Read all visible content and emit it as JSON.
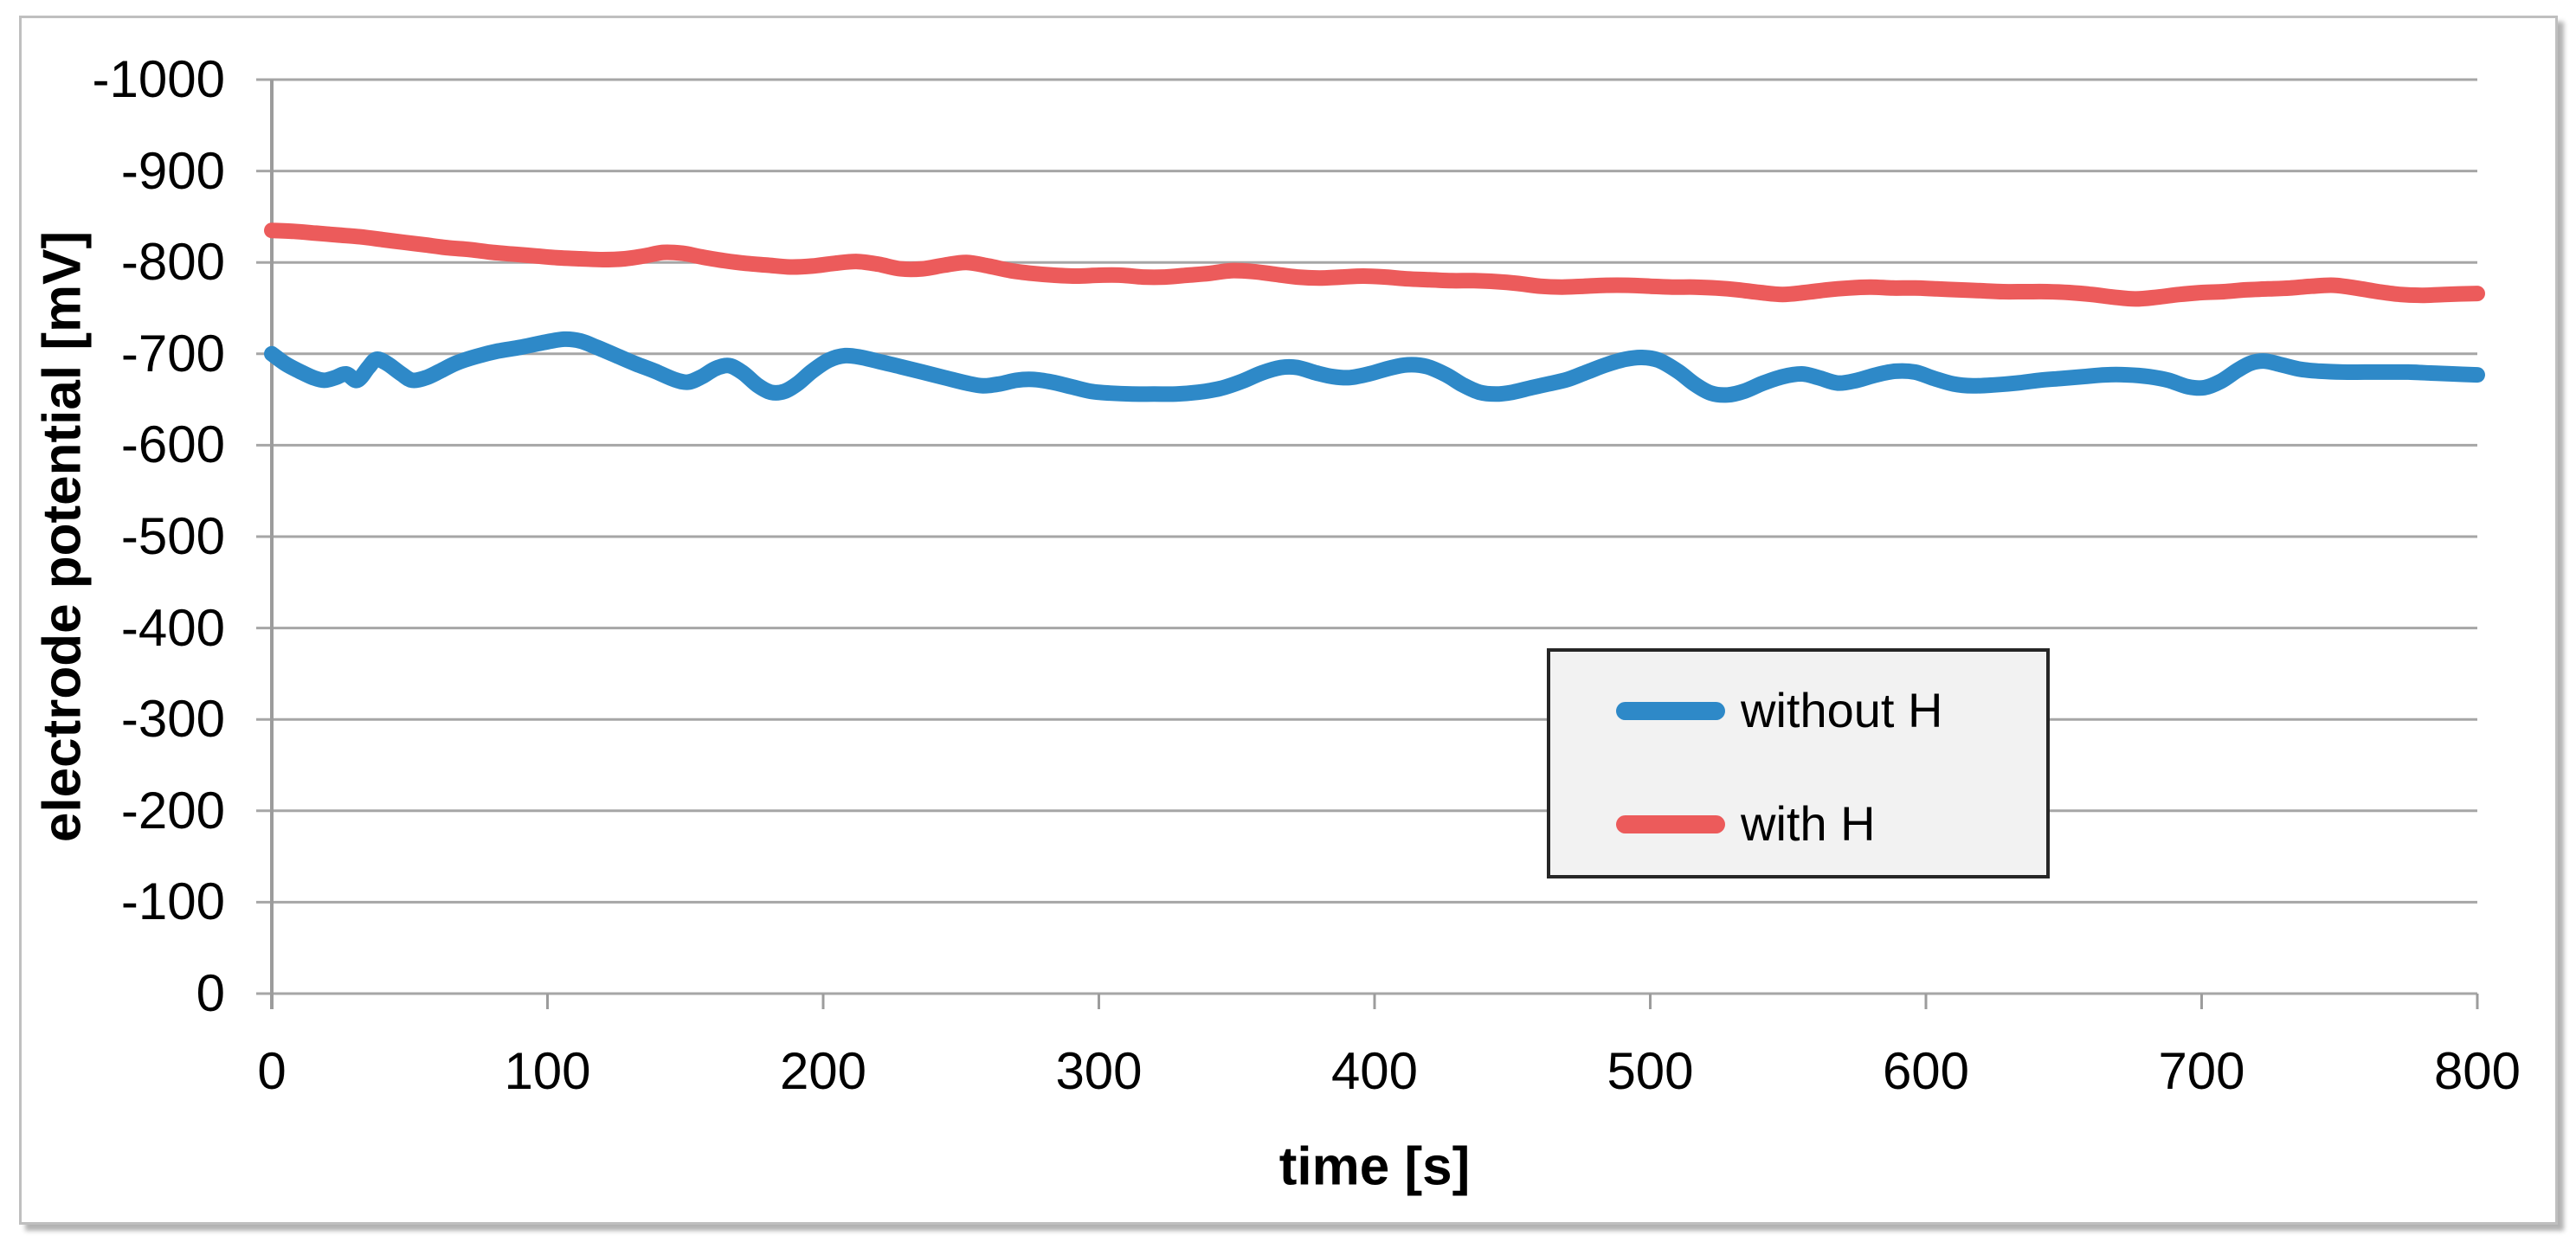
{
  "chart_data": {
    "type": "line",
    "title": "",
    "xlabel": "time [s]",
    "ylabel": "electrode potential [mV]",
    "grid": "horizontal",
    "colors": {
      "gridline": "#A6A6A6",
      "axis": "#9C9C9C",
      "legend_border": "#262626",
      "legend_background": "#F2F2F2",
      "frame_border": "#BFBFBF"
    },
    "x_axis": {
      "min": 0,
      "max": 800,
      "tick_labels": [
        "0",
        "100",
        "200",
        "300",
        "400",
        "500",
        "600",
        "700",
        "800"
      ],
      "tick_values": [
        0,
        100,
        200,
        300,
        400,
        500,
        600,
        700,
        800
      ]
    },
    "y_axis": {
      "min": -1000,
      "max": 0,
      "inverted": true,
      "tick_labels": [
        "-1000",
        "-900",
        "-800",
        "-700",
        "-600",
        "-500",
        "-400",
        "-300",
        "-200",
        "-100",
        "0"
      ],
      "tick_values": [
        -1000,
        -900,
        -800,
        -700,
        -600,
        -500,
        -400,
        -300,
        -200,
        -100,
        0
      ]
    },
    "legend": {
      "position": "inside-right",
      "items": [
        {
          "label": "without H",
          "color": "#2E89C8"
        },
        {
          "label": "with H",
          "color": "#EC5B5B"
        }
      ]
    },
    "series": [
      {
        "name": "without H",
        "color": "#2E89C8",
        "points": [
          [
            0,
            -700
          ],
          [
            5,
            -689
          ],
          [
            10,
            -681
          ],
          [
            15,
            -674
          ],
          [
            19,
            -671
          ],
          [
            23,
            -674
          ],
          [
            27,
            -678
          ],
          [
            31,
            -671
          ],
          [
            35,
            -685
          ],
          [
            38,
            -694
          ],
          [
            42,
            -689
          ],
          [
            47,
            -678
          ],
          [
            51,
            -671
          ],
          [
            56,
            -674
          ],
          [
            61,
            -681
          ],
          [
            67,
            -690
          ],
          [
            74,
            -697
          ],
          [
            82,
            -703
          ],
          [
            90,
            -707
          ],
          [
            98,
            -712
          ],
          [
            106,
            -716
          ],
          [
            112,
            -714
          ],
          [
            118,
            -707
          ],
          [
            125,
            -698
          ],
          [
            132,
            -689
          ],
          [
            139,
            -681
          ],
          [
            146,
            -672
          ],
          [
            151,
            -669
          ],
          [
            156,
            -675
          ],
          [
            161,
            -684
          ],
          [
            166,
            -687
          ],
          [
            171,
            -679
          ],
          [
            176,
            -666
          ],
          [
            181,
            -658
          ],
          [
            186,
            -659
          ],
          [
            191,
            -668
          ],
          [
            196,
            -681
          ],
          [
            202,
            -693
          ],
          [
            208,
            -698
          ],
          [
            214,
            -696
          ],
          [
            221,
            -691
          ],
          [
            228,
            -686
          ],
          [
            236,
            -680
          ],
          [
            244,
            -674
          ],
          [
            252,
            -668
          ],
          [
            258,
            -665
          ],
          [
            264,
            -667
          ],
          [
            270,
            -671
          ],
          [
            276,
            -672
          ],
          [
            283,
            -669
          ],
          [
            290,
            -664
          ],
          [
            297,
            -659
          ],
          [
            304,
            -657
          ],
          [
            312,
            -656
          ],
          [
            320,
            -656
          ],
          [
            328,
            -656
          ],
          [
            336,
            -658
          ],
          [
            344,
            -662
          ],
          [
            352,
            -670
          ],
          [
            359,
            -679
          ],
          [
            366,
            -685
          ],
          [
            372,
            -685
          ],
          [
            379,
            -679
          ],
          [
            385,
            -675
          ],
          [
            391,
            -674
          ],
          [
            398,
            -678
          ],
          [
            405,
            -684
          ],
          [
            412,
            -688
          ],
          [
            419,
            -686
          ],
          [
            426,
            -677
          ],
          [
            432,
            -666
          ],
          [
            438,
            -658
          ],
          [
            444,
            -656
          ],
          [
            450,
            -658
          ],
          [
            457,
            -663
          ],
          [
            463,
            -667
          ],
          [
            470,
            -672
          ],
          [
            477,
            -680
          ],
          [
            484,
            -688
          ],
          [
            491,
            -694
          ],
          [
            497,
            -696
          ],
          [
            503,
            -693
          ],
          [
            510,
            -681
          ],
          [
            516,
            -667
          ],
          [
            522,
            -657
          ],
          [
            528,
            -655
          ],
          [
            534,
            -659
          ],
          [
            541,
            -668
          ],
          [
            548,
            -675
          ],
          [
            555,
            -678
          ],
          [
            561,
            -674
          ],
          [
            568,
            -668
          ],
          [
            575,
            -671
          ],
          [
            582,
            -677
          ],
          [
            589,
            -681
          ],
          [
            596,
            -680
          ],
          [
            603,
            -673
          ],
          [
            610,
            -667
          ],
          [
            617,
            -665
          ],
          [
            625,
            -666
          ],
          [
            633,
            -668
          ],
          [
            641,
            -671
          ],
          [
            649,
            -673
          ],
          [
            657,
            -675
          ],
          [
            665,
            -677
          ],
          [
            673,
            -677
          ],
          [
            681,
            -675
          ],
          [
            688,
            -671
          ],
          [
            695,
            -664
          ],
          [
            701,
            -663
          ],
          [
            707,
            -670
          ],
          [
            713,
            -682
          ],
          [
            718,
            -690
          ],
          [
            723,
            -692
          ],
          [
            729,
            -688
          ],
          [
            736,
            -683
          ],
          [
            743,
            -681
          ],
          [
            751,
            -680
          ],
          [
            759,
            -680
          ],
          [
            767,
            -680
          ],
          [
            775,
            -680
          ],
          [
            783,
            -679
          ],
          [
            791,
            -678
          ],
          [
            800,
            -677
          ]
        ]
      },
      {
        "name": "with H",
        "color": "#EC5B5B",
        "points": [
          [
            0,
            -835
          ],
          [
            8,
            -834
          ],
          [
            16,
            -832
          ],
          [
            24,
            -830
          ],
          [
            32,
            -828
          ],
          [
            40,
            -825
          ],
          [
            48,
            -822
          ],
          [
            56,
            -819
          ],
          [
            64,
            -816
          ],
          [
            72,
            -814
          ],
          [
            80,
            -811
          ],
          [
            88,
            -809
          ],
          [
            96,
            -807
          ],
          [
            104,
            -805
          ],
          [
            112,
            -804
          ],
          [
            120,
            -803
          ],
          [
            128,
            -804
          ],
          [
            135,
            -807
          ],
          [
            142,
            -811
          ],
          [
            149,
            -810
          ],
          [
            156,
            -806
          ],
          [
            164,
            -802
          ],
          [
            172,
            -799
          ],
          [
            180,
            -797
          ],
          [
            188,
            -795
          ],
          [
            196,
            -796
          ],
          [
            204,
            -799
          ],
          [
            212,
            -801
          ],
          [
            220,
            -798
          ],
          [
            228,
            -793
          ],
          [
            236,
            -793
          ],
          [
            244,
            -797
          ],
          [
            252,
            -800
          ],
          [
            260,
            -796
          ],
          [
            268,
            -791
          ],
          [
            276,
            -788
          ],
          [
            284,
            -786
          ],
          [
            292,
            -785
          ],
          [
            300,
            -786
          ],
          [
            308,
            -786
          ],
          [
            316,
            -784
          ],
          [
            324,
            -784
          ],
          [
            332,
            -786
          ],
          [
            340,
            -788
          ],
          [
            348,
            -791
          ],
          [
            356,
            -790
          ],
          [
            364,
            -787
          ],
          [
            372,
            -784
          ],
          [
            380,
            -783
          ],
          [
            388,
            -784
          ],
          [
            396,
            -785
          ],
          [
            404,
            -784
          ],
          [
            412,
            -782
          ],
          [
            420,
            -781
          ],
          [
            428,
            -780
          ],
          [
            436,
            -780
          ],
          [
            444,
            -779
          ],
          [
            452,
            -777
          ],
          [
            460,
            -774
          ],
          [
            468,
            -773
          ],
          [
            476,
            -774
          ],
          [
            484,
            -775
          ],
          [
            492,
            -775
          ],
          [
            500,
            -774
          ],
          [
            508,
            -773
          ],
          [
            516,
            -773
          ],
          [
            524,
            -772
          ],
          [
            532,
            -770
          ],
          [
            540,
            -767
          ],
          [
            548,
            -765
          ],
          [
            556,
            -767
          ],
          [
            564,
            -770
          ],
          [
            572,
            -772
          ],
          [
            580,
            -773
          ],
          [
            588,
            -772
          ],
          [
            596,
            -772
          ],
          [
            604,
            -771
          ],
          [
            612,
            -770
          ],
          [
            620,
            -769
          ],
          [
            628,
            -768
          ],
          [
            636,
            -768
          ],
          [
            644,
            -768
          ],
          [
            652,
            -767
          ],
          [
            660,
            -765
          ],
          [
            668,
            -762
          ],
          [
            676,
            -760
          ],
          [
            684,
            -762
          ],
          [
            692,
            -765
          ],
          [
            700,
            -767
          ],
          [
            708,
            -768
          ],
          [
            716,
            -770
          ],
          [
            724,
            -771
          ],
          [
            732,
            -772
          ],
          [
            740,
            -774
          ],
          [
            748,
            -775
          ],
          [
            756,
            -772
          ],
          [
            764,
            -768
          ],
          [
            772,
            -765
          ],
          [
            780,
            -764
          ],
          [
            788,
            -765
          ],
          [
            800,
            -766
          ]
        ]
      }
    ]
  }
}
